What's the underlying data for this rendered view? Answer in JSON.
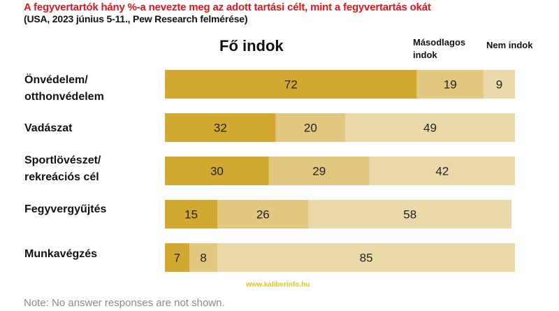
{
  "chart_data": {
    "type": "bar",
    "orientation": "horizontal",
    "stacked": true,
    "title": "A fegyvertartók hány %-a nevezte meg az adott tartási célt, mint a fegyvertartás okát",
    "subtitle": "(USA, 2023 június 5-11., Pew Research felmérése)",
    "xlabel": "",
    "ylabel": "",
    "xlim": [
      0,
      100
    ],
    "grid": false,
    "categories": [
      [
        "Önvédelem/",
        "otthonvédelem"
      ],
      [
        "Vadászat"
      ],
      [
        "Sportlövészet/",
        "rekreációs cél"
      ],
      [
        "Fegyvergyűjtés"
      ],
      [
        "Munkavégzés"
      ]
    ],
    "series": [
      {
        "name": "Fő indok",
        "color": "#d1a830",
        "values": [
          72,
          32,
          30,
          15,
          7
        ]
      },
      {
        "name": "Másodlagos indok",
        "color": "#e1c77f",
        "values": [
          19,
          20,
          29,
          26,
          8
        ]
      },
      {
        "name": "Nem indok",
        "color": "#ebdaa9",
        "values": [
          9,
          49,
          42,
          58,
          85
        ]
      }
    ],
    "column_headers": {
      "main": "Fő indok",
      "secondary": [
        "Másodlagos",
        "indok"
      ],
      "none": "Nem indok"
    },
    "note": "Note: No answer responses are not shown.",
    "watermark": "www.kaliberinfo.hu"
  }
}
